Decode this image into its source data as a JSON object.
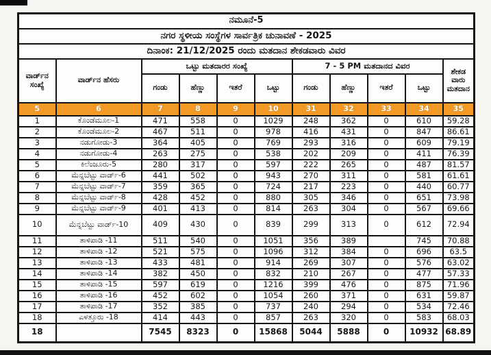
{
  "document": {
    "form_title": "ನಮೂನೆ-5",
    "election_title": "ನಗರ ಸ್ಥಳೀಯ ಸಂಸ್ಥೆಗಳ ಸಾರ್ವತ್ರಿಕ ಚುನಾವಣೆ - 2025",
    "date_line": "ದಿನಾಂಕ: 21/12/2025 ರಂದು ಮತದಾನ ಶೇಕಡವಾರು ವಿವರ"
  },
  "table": {
    "headers": {
      "ward_no": "ವಾರ್ಡ್‌ನ ಸಂಖ್ಯೆ",
      "ward_name": "ವಾರ್ಡ್‌ನ ಹೆಸರು",
      "group_total_voters": "ಒಟ್ಟು ಮತದಾರರ ಸಂಖ್ಯೆ",
      "group_poll_detail": "7 - 5 PM ಮತದಾನದ ವಿವರ",
      "male1": "ಗಂಡು",
      "female1": "ಹೆಣ್ಣು",
      "other1": "ಇತರೆ",
      "total1": "ಒಟ್ಟು",
      "male2": "ಗಂಡು",
      "female2": "ಹೆಣ್ಣು",
      "other2": "ಇತರೆ",
      "total2": "ಒಟ್ಟು",
      "percent": "ಶೇಕಡ ವಾರು ಮತದಾನ"
    },
    "column_numbers": [
      "5",
      "6",
      "7",
      "8",
      "9",
      "10",
      "31",
      "32",
      "33",
      "34",
      "35"
    ],
    "rows": [
      {
        "no": "1",
        "name": "ಕೊಂಡೆಮೂಲ-1",
        "cells": [
          "471",
          "558",
          "0",
          "1029",
          "248",
          "362",
          "0",
          "610",
          "59.28"
        ]
      },
      {
        "no": "2",
        "name": "ಕೊಂಡೆಮೂಲ-2",
        "cells": [
          "467",
          "511",
          "0",
          "978",
          "416",
          "431",
          "0",
          "847",
          "86.61"
        ]
      },
      {
        "no": "3",
        "name": "ನಡುಗೋಡು-3",
        "cells": [
          "364",
          "405",
          "0",
          "769",
          "293",
          "316",
          "0",
          "609",
          "79.19"
        ]
      },
      {
        "no": "4",
        "name": "ನಡುಗೋಡು-4",
        "cells": [
          "263",
          "275",
          "0",
          "538",
          "202",
          "209",
          "0",
          "411",
          "76.39"
        ]
      },
      {
        "no": "5",
        "name": "ಕಿಲೆಂಜೂರು-5",
        "cells": [
          "280",
          "317",
          "0",
          "597",
          "222",
          "265",
          "0",
          "487",
          "81.57"
        ]
      },
      {
        "no": "6",
        "name": "ಮೆನ್ನಬೆಟ್ಟು ವಾರ್ಡ್-6",
        "cells": [
          "441",
          "502",
          "0",
          "943",
          "270",
          "311",
          "0",
          "581",
          "61.61"
        ]
      },
      {
        "no": "7",
        "name": "ಮೆನ್ನಬೆಟ್ಟು ವಾರ್ಡ್-7",
        "cells": [
          "359",
          "365",
          "0",
          "724",
          "217",
          "223",
          "0",
          "440",
          "60.77"
        ]
      },
      {
        "no": "8",
        "name": "ಮೆನ್ನಬೆಟ್ಟು ವಾರ್ಡ್-8",
        "cells": [
          "428",
          "452",
          "0",
          "880",
          "305",
          "346",
          "0",
          "651",
          "73.98"
        ]
      },
      {
        "no": "9",
        "name": "ಮೆನ್ನಬೆಟ್ಟು ವಾರ್ಡ್-9",
        "cells": [
          "401",
          "413",
          "0",
          "814",
          "263",
          "304",
          "0",
          "567",
          "69.66"
        ]
      },
      {
        "no": "10",
        "name": "ಮೆನ್ನಬೆಟ್ಟು ವಾರ್ಡ್-10",
        "cells": [
          "409",
          "430",
          "0",
          "839",
          "299",
          "313",
          "0",
          "612",
          "72.94"
        ]
      },
      {
        "no": "11",
        "name": "ತಾಳಿಪಾಡಿ -11",
        "cells": [
          "511",
          "540",
          "0",
          "1051",
          "356",
          "389",
          "",
          "745",
          "70.88"
        ]
      },
      {
        "no": "12",
        "name": "ತಾಳಿಪಾಡಿ -12",
        "cells": [
          "521",
          "575",
          "0",
          "1096",
          "312",
          "384",
          "0",
          "696",
          "63.5"
        ]
      },
      {
        "no": "13",
        "name": "ತಾಳಿಪಾಡಿ -13",
        "cells": [
          "433",
          "481",
          "0",
          "914",
          "269",
          "307",
          "0",
          "576",
          "63.02"
        ]
      },
      {
        "no": "14",
        "name": "ತಾಳಿಪಾಡಿ -14",
        "cells": [
          "382",
          "450",
          "0",
          "832",
          "210",
          "267",
          "0",
          "477",
          "57.33"
        ]
      },
      {
        "no": "15",
        "name": "ತಾಳಿಪಾಡಿ -15",
        "cells": [
          "597",
          "619",
          "0",
          "1216",
          "399",
          "476",
          "0",
          "875",
          "71.96"
        ]
      },
      {
        "no": "16",
        "name": "ತಾಳಿಪಾಡಿ -16",
        "cells": [
          "452",
          "602",
          "0",
          "1054",
          "260",
          "371",
          "0",
          "631",
          "59.87"
        ]
      },
      {
        "no": "17",
        "name": "ತಾಳಿಪಾಡಿ -17",
        "cells": [
          "352",
          "385",
          "0",
          "737",
          "240",
          "294",
          "0",
          "534",
          "72.46"
        ]
      },
      {
        "no": "18",
        "name": "ಎಳತ್ತೂರು -18",
        "cells": [
          "414",
          "443",
          "0",
          "857",
          "263",
          "320",
          "0",
          "583",
          "68.03"
        ]
      }
    ],
    "total_row": {
      "no": "18",
      "name": "",
      "cells": [
        "7545",
        "8323",
        "0",
        "15868",
        "5044",
        "5888",
        "0",
        "10932",
        "68.89"
      ]
    }
  },
  "colors": {
    "header_row_orange": "#F39A26",
    "border_black": "#141414"
  }
}
